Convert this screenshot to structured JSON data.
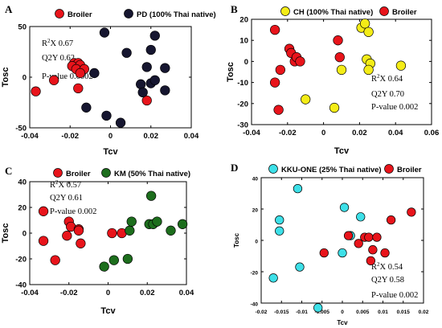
{
  "colors": {
    "broiler": "#e8141b",
    "pd": "#161630",
    "ch": "#f4ec17",
    "km": "#1d6e1d",
    "kku": "#3de0e8"
  },
  "chart_data": [
    {
      "type": "scatter",
      "panel": "A",
      "xlabel": "Tcv",
      "ylabel": "Tosc",
      "xlim": [
        -0.04,
        0.04
      ],
      "ylim": [
        -50,
        50
      ],
      "xticks": [
        -0.04,
        -0.02,
        0,
        0.02,
        0.04
      ],
      "yticks": [
        -50,
        0,
        50
      ],
      "xtick_labels": [
        "-0.04",
        "-0.02",
        "0",
        "0.02",
        "0.04"
      ],
      "ytick_labels": [
        "-50",
        "0",
        "50"
      ],
      "legend": [
        {
          "label": "Broiler",
          "color_key": "broiler"
        },
        {
          "label": "PD (100% Thai native)",
          "color_key": "pd"
        }
      ],
      "stats": {
        "r2x_prefix": "R",
        "r2x_sup": "2",
        "r2x_suffix": "X 0.67",
        "q2y": "Q2Y 0.62",
        "pvalue": "P-value 0.0002"
      },
      "series": [
        {
          "name": "Broiler",
          "color_key": "broiler",
          "points": [
            [
              -0.037,
              -14
            ],
            [
              -0.028,
              -3
            ],
            [
              -0.018,
              14
            ],
            [
              -0.016,
              14
            ],
            [
              -0.019,
              11
            ],
            [
              -0.015,
              12
            ],
            [
              -0.017,
              8
            ],
            [
              -0.013,
              8
            ],
            [
              -0.015,
              4
            ],
            [
              -0.016,
              -11
            ],
            [
              0.018,
              -23
            ]
          ]
        },
        {
          "name": "PD (100% Thai native)",
          "color_key": "pd",
          "points": [
            [
              -0.012,
              -30
            ],
            [
              -0.008,
              4
            ],
            [
              -0.003,
              44
            ],
            [
              -0.002,
              -38
            ],
            [
              0.005,
              -45
            ],
            [
              0.008,
              24
            ],
            [
              0.015,
              -7
            ],
            [
              0.016,
              -15
            ],
            [
              0.018,
              10
            ],
            [
              0.02,
              27
            ],
            [
              0.02,
              -6
            ],
            [
              0.022,
              41
            ],
            [
              0.022,
              -3
            ],
            [
              0.027,
              9
            ],
            [
              0.027,
              -13
            ]
          ]
        }
      ]
    },
    {
      "type": "scatter",
      "panel": "B",
      "xlabel": "Tcv",
      "ylabel": "Tosc",
      "xlim": [
        -0.04,
        0.06
      ],
      "ylim": [
        -30,
        20
      ],
      "xticks": [
        -0.04,
        -0.02,
        0,
        0.02,
        0.04,
        0.06
      ],
      "yticks": [
        -30,
        -20,
        -10,
        0,
        10,
        20
      ],
      "xtick_labels": [
        "-0.04",
        "-0.02",
        "0",
        "0.02",
        "0.04",
        "0.06"
      ],
      "ytick_labels": [
        "-30",
        "-20",
        "-10",
        "0",
        "10",
        "20"
      ],
      "legend": [
        {
          "label": "CH (100% Thai native)",
          "color_key": "ch"
        },
        {
          "label": "Broiler",
          "color_key": "broiler"
        }
      ],
      "stats": {
        "r2x_prefix": "R",
        "r2x_sup": "2",
        "r2x_suffix": "X 0.64",
        "q2y": "Q2Y 0.70",
        "pvalue": "P-value 0.002"
      },
      "series": [
        {
          "name": "CH (100% Thai native)",
          "color_key": "ch",
          "points": [
            [
              -0.01,
              -18
            ],
            [
              0.006,
              -22
            ],
            [
              0.01,
              -4
            ],
            [
              0.021,
              16
            ],
            [
              0.023,
              18
            ],
            [
              0.025,
              14
            ],
            [
              0.024,
              1
            ],
            [
              0.026,
              -1
            ],
            [
              0.025,
              -4
            ],
            [
              0.043,
              -2
            ]
          ]
        },
        {
          "name": "Broiler",
          "color_key": "broiler",
          "points": [
            [
              -0.027,
              15
            ],
            [
              -0.027,
              -10
            ],
            [
              -0.025,
              -23
            ],
            [
              -0.024,
              -4
            ],
            [
              -0.019,
              6
            ],
            [
              -0.018,
              4
            ],
            [
              -0.016,
              0
            ],
            [
              -0.015,
              2
            ],
            [
              -0.013,
              0
            ],
            [
              0.008,
              10
            ],
            [
              0.009,
              2
            ]
          ]
        }
      ]
    },
    {
      "type": "scatter",
      "panel": "C",
      "xlabel": "Tcv",
      "ylabel": "Tosc",
      "xlim": [
        -0.04,
        0.04
      ],
      "ylim": [
        -40,
        40
      ],
      "xticks": [
        -0.04,
        -0.02,
        0,
        0.02,
        0.04
      ],
      "yticks": [
        -40,
        -20,
        0,
        20,
        40
      ],
      "xtick_labels": [
        "-0.04",
        "-0.02",
        "0",
        "0.02",
        "0.04"
      ],
      "ytick_labels": [
        "-40",
        "-20",
        "0",
        "20",
        "40"
      ],
      "legend": [
        {
          "label": "Broiler",
          "color_key": "broiler"
        },
        {
          "label": "KM (50% Thai native)",
          "color_key": "km"
        }
      ],
      "stats": {
        "r2x_prefix": "R",
        "r2x_sup": "2",
        "r2x_suffix": "X 0.57",
        "q2y": "Q2Y 0.61",
        "pvalue": "P-value 0.002"
      },
      "series": [
        {
          "name": "Broiler",
          "color_key": "broiler",
          "points": [
            [
              -0.033,
              17
            ],
            [
              -0.033,
              -6
            ],
            [
              -0.027,
              -21
            ],
            [
              -0.021,
              -2
            ],
            [
              -0.02,
              9
            ],
            [
              -0.019,
              5
            ],
            [
              -0.015,
              3
            ],
            [
              -0.015,
              2
            ],
            [
              -0.014,
              -8
            ],
            [
              0.002,
              0
            ],
            [
              0.007,
              0
            ]
          ]
        },
        {
          "name": "KM (50% Thai native)",
          "color_key": "km",
          "points": [
            [
              -0.002,
              -26
            ],
            [
              0.003,
              -21
            ],
            [
              0.01,
              -20
            ],
            [
              0.011,
              2
            ],
            [
              0.012,
              9
            ],
            [
              0.021,
              7
            ],
            [
              0.022,
              29
            ],
            [
              0.023,
              7
            ],
            [
              0.025,
              9
            ],
            [
              0.032,
              2
            ],
            [
              0.038,
              7
            ]
          ]
        }
      ]
    },
    {
      "type": "scatter",
      "panel": "D",
      "xlabel": "Tcv",
      "ylabel": "Tosc",
      "xlim": [
        -0.02,
        0.02
      ],
      "ylim": [
        -40,
        40
      ],
      "xticks": [
        -0.02,
        -0.015,
        -0.01,
        -0.005,
        0,
        0.005,
        0.01,
        0.015,
        0.02
      ],
      "yticks": [
        -40,
        -20,
        0,
        20,
        40
      ],
      "xtick_labels": [
        "-0.02",
        "-0.015",
        "-0.01",
        "-0.005",
        "0",
        "0.005",
        "0.01",
        "0.015",
        "0.02"
      ],
      "ytick_labels": [
        "-40",
        "-20",
        "0",
        "20",
        "40"
      ],
      "legend": [
        {
          "label": "KKU-ONE (25% Thai native)",
          "color_key": "kku"
        },
        {
          "label": "Broiler",
          "color_key": "broiler"
        }
      ],
      "stats": {
        "r2x_prefix": "R",
        "r2x_sup": "2",
        "r2x_suffix": "X 0.54",
        "q2y": "Q2Y 0.58",
        "pvalue": "P-value 0.002"
      },
      "series": [
        {
          "name": "KKU-ONE (25% Thai native)",
          "color_key": "kku",
          "points": [
            [
              -0.017,
              -24
            ],
            [
              -0.0155,
              13
            ],
            [
              -0.0155,
              6
            ],
            [
              -0.011,
              33
            ],
            [
              -0.0105,
              -17
            ],
            [
              -0.006,
              -43
            ],
            [
              0.0,
              -8
            ],
            [
              0.0005,
              21
            ],
            [
              0.002,
              3
            ],
            [
              0.0045,
              15
            ]
          ]
        },
        {
          "name": "Broiler",
          "color_key": "broiler",
          "points": [
            [
              -0.0045,
              -8
            ],
            [
              0.0015,
              3
            ],
            [
              0.004,
              -2
            ],
            [
              0.0055,
              2
            ],
            [
              0.0065,
              2
            ],
            [
              0.007,
              -13
            ],
            [
              0.0075,
              -6
            ],
            [
              0.0085,
              2
            ],
            [
              0.0105,
              -8
            ],
            [
              0.012,
              13
            ],
            [
              0.017,
              18
            ]
          ]
        }
      ]
    }
  ]
}
